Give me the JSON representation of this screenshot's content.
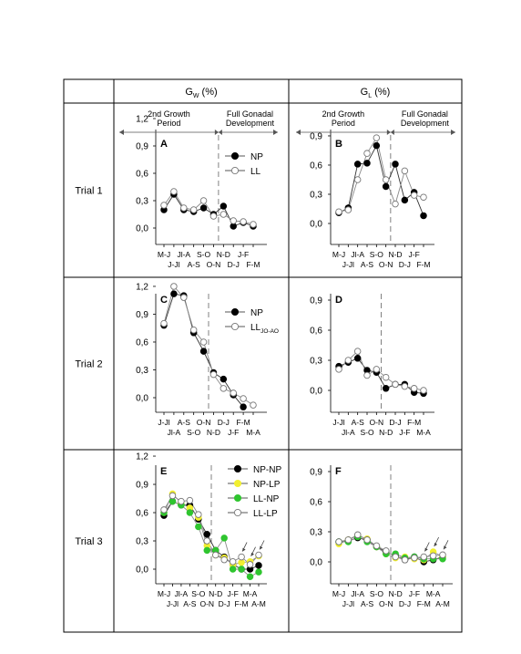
{
  "headers": {
    "gw": "G",
    "gw_sub": "W",
    "gw_unit": " (%)",
    "gl": "G",
    "gl_sub": "L",
    "gl_unit": " (%)"
  },
  "rows": [
    "Trial 1",
    "Trial 2",
    "Trial 3"
  ],
  "period_labels": {
    "second_growth": [
      "2nd Growth",
      "Period"
    ],
    "full_gonadal": [
      "Full Gonadal",
      "Development"
    ]
  },
  "colors": {
    "NP": "#000000",
    "LL": "#ffffff",
    "NP-NP": "#000000",
    "NP-LP": "#f2ef30",
    "LL-NP": "#2fc52f",
    "LL-LP": "#ffffff",
    "line": "#7f7f7f",
    "dash": "#808080"
  },
  "chart_data": [
    {
      "panel": "A",
      "type": "line",
      "trial": "Trial 1",
      "metric": "G_W (%)",
      "ylim": [
        -0.1,
        1.25
      ],
      "yticks": [
        "1,2",
        "0,9",
        "0,6",
        "0,3",
        "0,0"
      ],
      "ytick_values": [
        1.2,
        0.9,
        0.6,
        0.3,
        0.0
      ],
      "categories": [
        "M-J",
        "J-Jl",
        "Jl-A",
        "A-S",
        "S-O",
        "O-N",
        "N-D",
        "D-J",
        "J-F",
        "F-M"
      ],
      "tick_rows": [
        [
          "M-J",
          "Jl-A",
          "S-O",
          "N-D",
          "J-F"
        ],
        [
          "J-Jl",
          "A-S",
          "O-N",
          "D-J",
          "F-M"
        ]
      ],
      "divider_after": 5.5,
      "series": [
        {
          "name": "NP",
          "values": [
            0.2,
            0.37,
            0.2,
            0.18,
            0.22,
            0.15,
            0.24,
            0.02,
            0.06,
            0.02
          ]
        },
        {
          "name": "LL",
          "values": [
            0.25,
            0.4,
            0.22,
            0.2,
            0.3,
            0.13,
            0.15,
            0.08,
            0.07,
            0.04
          ]
        }
      ],
      "legend": [
        "NP",
        "LL"
      ],
      "legend_position": "top-right"
    },
    {
      "panel": "B",
      "type": "line",
      "trial": "Trial 1",
      "metric": "G_L (%)",
      "ylim": [
        -0.4,
        1.0
      ],
      "yticks": [
        "0,9",
        "0,6",
        "0,3",
        "0,0"
      ],
      "ytick_values": [
        0.9,
        0.6,
        0.3,
        0.0
      ],
      "categories": [
        "M-J",
        "J-Jl",
        "Jl-A",
        "A-S",
        "S-O",
        "O-N",
        "N-D",
        "D-J",
        "J-F",
        "F-M"
      ],
      "tick_rows": [
        [
          "M-J",
          "Jl-A",
          "S-O",
          "N-D",
          "J-F"
        ],
        [
          "J-Jl",
          "A-S",
          "O-N",
          "D-J",
          "F-M"
        ]
      ],
      "divider_after": 5.5,
      "series": [
        {
          "name": "NP",
          "values": [
            0.11,
            0.16,
            0.61,
            0.62,
            0.8,
            0.38,
            0.61,
            0.24,
            0.32,
            0.08
          ]
        },
        {
          "name": "LL",
          "values": [
            0.12,
            0.14,
            0.45,
            0.72,
            0.88,
            0.45,
            0.2,
            0.54,
            0.29,
            0.27
          ]
        }
      ],
      "legend": [],
      "legend_position": ""
    },
    {
      "panel": "C",
      "type": "line",
      "trial": "Trial 2",
      "metric": "G_W (%)",
      "ylim": [
        -0.15,
        1.3
      ],
      "yticks": [
        "1,2",
        "0,9",
        "0,6",
        "0,3",
        "0,0"
      ],
      "ytick_values": [
        1.2,
        0.9,
        0.6,
        0.3,
        0.0
      ],
      "categories": [
        "J-Jl",
        "Jl-A",
        "A-S",
        "S-O",
        "O-N",
        "N-D",
        "D-J",
        "J-F",
        "F-M",
        "M-A"
      ],
      "tick_rows": [
        [
          "J-Jl",
          "A-S",
          "O-N",
          "D-J",
          "F-M"
        ],
        [
          "Jl-A",
          "S-O",
          "N-D",
          "J-F",
          "M-A"
        ]
      ],
      "divider_after": 4.5,
      "series": [
        {
          "name": "NP",
          "values": [
            0.78,
            1.12,
            1.1,
            0.7,
            0.5,
            0.27,
            0.2,
            0.03,
            -0.1,
            null
          ]
        },
        {
          "name": "LL",
          "values": [
            0.8,
            1.2,
            1.08,
            0.73,
            0.6,
            0.25,
            0.1,
            0.05,
            -0.01,
            -0.08
          ]
        }
      ],
      "legend": [
        "NP",
        "LL"
      ],
      "legend_sub": [
        "",
        "JO-AO"
      ],
      "legend_position": "top-right"
    },
    {
      "panel": "D",
      "type": "line",
      "trial": "Trial 2",
      "metric": "G_L (%)",
      "ylim": [
        -0.35,
        1.0
      ],
      "yticks": [
        "0,9",
        "0,6",
        "0,3",
        "0,0"
      ],
      "ytick_values": [
        0.9,
        0.6,
        0.3,
        0.0
      ],
      "categories": [
        "J-Jl",
        "Jl-A",
        "A-S",
        "S-O",
        "O-N",
        "N-D",
        "D-J",
        "J-F",
        "F-M",
        "M-A"
      ],
      "tick_rows": [
        [
          "J-Jl",
          "A-S",
          "O-N",
          "D-J",
          "F-M"
        ],
        [
          "Jl-A",
          "S-O",
          "N-D",
          "J-F",
          "M-A"
        ]
      ],
      "divider_after": 4.5,
      "series": [
        {
          "name": "NP",
          "values": [
            0.24,
            0.28,
            0.32,
            0.2,
            0.18,
            0.02,
            0.06,
            0.06,
            -0.02,
            -0.03
          ]
        },
        {
          "name": "LL",
          "values": [
            0.21,
            0.3,
            0.39,
            0.15,
            0.21,
            0.13,
            0.06,
            0.04,
            0.02,
            0.0
          ]
        }
      ],
      "legend": [],
      "legend_position": ""
    },
    {
      "panel": "E",
      "type": "line",
      "trial": "Trial 3",
      "metric": "G_W (%)",
      "ylim": [
        -0.15,
        1.3
      ],
      "yticks": [
        "1,2",
        "0,9",
        "0,6",
        "0,3",
        "0,0"
      ],
      "ytick_values": [
        1.2,
        0.9,
        0.6,
        0.3,
        0.0
      ],
      "categories": [
        "M-J",
        "J-Jl",
        "Jl-A",
        "A-S",
        "S-O",
        "O-N",
        "N-D",
        "D-J",
        "J-F",
        "F-M",
        "M-A",
        "A-M"
      ],
      "tick_rows": [
        [
          "M-J",
          "Jl-A",
          "S-O",
          "N-D",
          "J-F",
          "M-A"
        ],
        [
          "J-Jl",
          "A-S",
          "O-N",
          "D-J",
          "F-M",
          "A-M"
        ]
      ],
      "divider_after": 5.5,
      "arrows_at": [
        9,
        10,
        11
      ],
      "series": [
        {
          "name": "NP-NP",
          "values": [
            0.57,
            0.72,
            0.68,
            0.68,
            0.53,
            0.37,
            0.2,
            0.13,
            0.05,
            0.0,
            0.0,
            0.04
          ]
        },
        {
          "name": "NP-LP",
          "values": [
            0.6,
            0.8,
            0.7,
            0.65,
            0.55,
            0.25,
            0.15,
            0.12,
            0.05,
            0.07,
            0.08,
            0.14
          ]
        },
        {
          "name": "LL-NP",
          "values": [
            0.6,
            0.72,
            0.68,
            0.6,
            0.45,
            0.2,
            0.2,
            0.33,
            0.0,
            0.0,
            -0.08,
            -0.03
          ]
        },
        {
          "name": "LL-LP",
          "values": [
            0.63,
            0.78,
            0.72,
            0.73,
            0.58,
            0.3,
            0.15,
            0.1,
            0.08,
            0.13,
            0.05,
            0.15
          ]
        }
      ],
      "legend": [
        "NP-NP",
        "NP-LP",
        "LL-NP",
        "LL-LP"
      ],
      "legend_position": "top-right"
    },
    {
      "panel": "F",
      "type": "line",
      "trial": "Trial 3",
      "metric": "G_L (%)",
      "ylim": [
        -0.35,
        1.0
      ],
      "yticks": [
        "0,9",
        "0,6",
        "0,3",
        "0,0"
      ],
      "ytick_values": [
        0.9,
        0.6,
        0.3,
        0.0
      ],
      "categories": [
        "M-J",
        "J-Jl",
        "Jl-A",
        "A-S",
        "S-O",
        "O-N",
        "N-D",
        "D-J",
        "J-F",
        "F-M",
        "M-A",
        "A-M"
      ],
      "tick_rows": [
        [
          "M-J",
          "Jl-A",
          "S-O",
          "N-D",
          "J-F",
          "M-A"
        ],
        [
          "J-Jl",
          "A-S",
          "O-N",
          "D-J",
          "F-M",
          "A-M"
        ]
      ],
      "divider_after": 5.5,
      "arrows_at": [
        9,
        10,
        11
      ],
      "series": [
        {
          "name": "NP-NP",
          "values": [
            0.2,
            0.21,
            0.24,
            0.22,
            0.15,
            0.1,
            0.06,
            0.02,
            0.05,
            0.0,
            0.02,
            0.05
          ]
        },
        {
          "name": "NP-LP",
          "values": [
            0.18,
            0.22,
            0.26,
            0.23,
            0.15,
            0.08,
            0.04,
            0.05,
            0.03,
            0.02,
            0.1,
            0.05
          ]
        },
        {
          "name": "LL-NP",
          "values": [
            0.2,
            0.2,
            0.25,
            0.2,
            0.15,
            0.08,
            0.08,
            0.04,
            0.05,
            0.03,
            0.03,
            0.03
          ]
        },
        {
          "name": "LL-LP",
          "values": [
            0.2,
            0.22,
            0.27,
            0.22,
            0.16,
            0.11,
            0.05,
            0.02,
            0.04,
            0.05,
            0.06,
            0.07
          ]
        }
      ],
      "legend": [],
      "legend_position": ""
    }
  ]
}
